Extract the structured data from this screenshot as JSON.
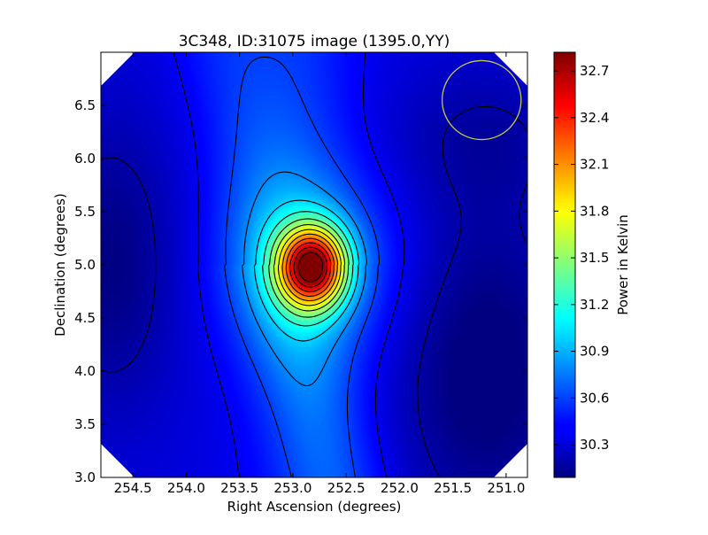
{
  "chart_data": {
    "type": "heatmap",
    "title": "3C348, ID:31075 image (1395.0,YY)",
    "xlabel": "Right Ascension (degrees)",
    "ylabel": "Declination (degrees)",
    "xlim": [
      254.8,
      250.8
    ],
    "ylim": [
      3.0,
      7.0
    ],
    "x_reversed": true,
    "x_ticks": [
      254.5,
      254.0,
      253.5,
      253.0,
      252.5,
      252.0,
      251.5,
      251.0
    ],
    "x_tick_labels": [
      "254.5",
      "254.0",
      "253.5",
      "253.0",
      "252.5",
      "252.0",
      "251.5",
      "251.0"
    ],
    "y_ticks": [
      3.0,
      3.5,
      4.0,
      4.5,
      5.0,
      5.5,
      6.0,
      6.5
    ],
    "y_tick_labels": [
      "3.0",
      "3.5",
      "4.0",
      "4.5",
      "5.0",
      "5.5",
      "6.0",
      "6.5"
    ],
    "colorbar": {
      "label": "Power in Kelvin",
      "range": [
        30.09,
        32.82
      ],
      "ticks": [
        30.3,
        30.6,
        30.9,
        31.2,
        31.5,
        31.8,
        32.1,
        32.4,
        32.7
      ],
      "tick_labels": [
        "30.3",
        "30.6",
        "30.9",
        "31.2",
        "31.5",
        "31.8",
        "32.1",
        "32.4",
        "32.7"
      ],
      "colormap": "jet"
    },
    "peak": {
      "ra": 252.82,
      "dec": 4.98,
      "value": 32.82
    },
    "contours": "black",
    "beam_circle": {
      "ra": 251.23,
      "dec": 6.55,
      "radius_deg": 0.37,
      "color": "#c8c850"
    },
    "field_shape": "octagon",
    "grid": false
  }
}
